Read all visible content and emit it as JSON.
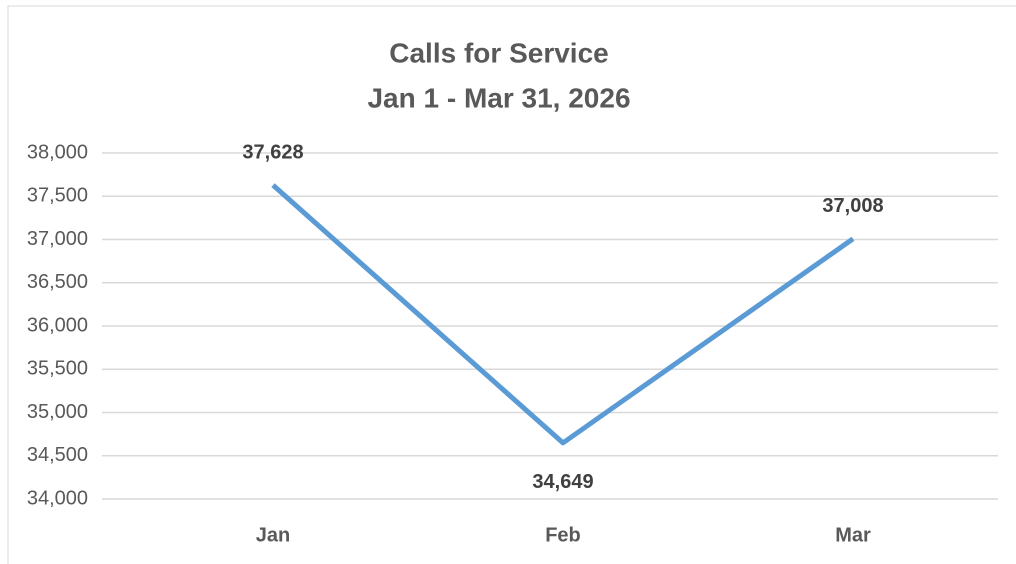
{
  "chart_data": {
    "type": "line",
    "title": "Calls for Service",
    "subtitle": "Jan 1 - Mar 31, 2026",
    "categories": [
      "Jan",
      "Feb",
      "Mar"
    ],
    "series": [
      {
        "name": "Calls for Service",
        "color": "#5b9bd5",
        "values": [
          37628,
          34649,
          37008
        ],
        "value_labels": [
          "37,628",
          "34,649",
          "37,008"
        ]
      }
    ],
    "ylim": [
      34000,
      38000
    ],
    "yticks": [
      {
        "value": 34000,
        "label": "34,000"
      },
      {
        "value": 34500,
        "label": "34,500"
      },
      {
        "value": 35000,
        "label": "35,000"
      },
      {
        "value": 35500,
        "label": "35,500"
      },
      {
        "value": 36000,
        "label": "36,000"
      },
      {
        "value": 36500,
        "label": "36,500"
      },
      {
        "value": 37000,
        "label": "37,000"
      },
      {
        "value": 37500,
        "label": "37,500"
      },
      {
        "value": 38000,
        "label": "38,000"
      }
    ],
    "grid": true,
    "legend": false
  }
}
